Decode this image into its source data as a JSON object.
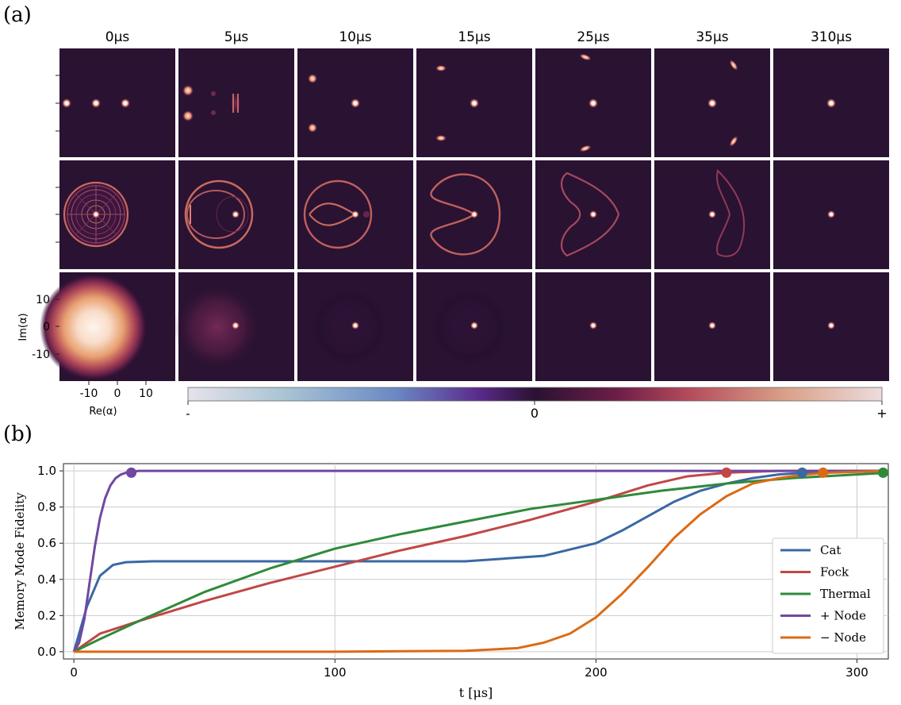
{
  "panel_a": {
    "label": "(a)",
    "time_labels": [
      "0μs",
      "5μs",
      "10μs",
      "15μs",
      "25μs",
      "35μs",
      "310μs"
    ],
    "x_axis": {
      "label": "Re(α)",
      "ticks": [
        "-10",
        "0",
        "10"
      ]
    },
    "y_axis": {
      "label": "Im(α)",
      "ticks": [
        "10",
        "0",
        "-10"
      ]
    },
    "colorbar": {
      "min_label": "-",
      "mid_label": "0",
      "max_label": "+"
    },
    "colors": {
      "background": "#2a1232",
      "bright": "#fff2ea"
    }
  },
  "chart_data": {
    "type": "line",
    "panel_label": "(b)",
    "xlabel": "t [μs]",
    "ylabel": "Memory Mode Fidelity",
    "xlim": [
      -4,
      312
    ],
    "ylim": [
      -0.04,
      1.04
    ],
    "xticks": [
      0,
      100,
      200,
      300
    ],
    "yticks": [
      0.0,
      0.2,
      0.4,
      0.6,
      0.8,
      1.0
    ],
    "xtick_labels": [
      "0",
      "100",
      "200",
      "300"
    ],
    "ytick_labels": [
      "0.0",
      "0.2",
      "0.4",
      "0.6",
      "0.8",
      "1.0"
    ],
    "grid": true,
    "legend_position": "bottom-right",
    "series": [
      {
        "name": "Cat",
        "color": "#3a68a4",
        "x": [
          0,
          5,
          10,
          15,
          20,
          30,
          50,
          100,
          150,
          180,
          200,
          210,
          220,
          230,
          240,
          250,
          260,
          270,
          280,
          300,
          312
        ],
        "y": [
          0,
          0.25,
          0.42,
          0.48,
          0.495,
          0.5,
          0.5,
          0.5,
          0.5,
          0.53,
          0.6,
          0.67,
          0.75,
          0.83,
          0.89,
          0.93,
          0.96,
          0.98,
          0.99,
          1.0,
          1.0
        ],
        "marker": [
          279,
          0.99
        ]
      },
      {
        "name": "Fock",
        "color": "#c14747",
        "x": [
          0,
          10,
          25,
          50,
          75,
          100,
          125,
          150,
          175,
          200,
          220,
          235,
          250,
          270,
          312
        ],
        "y": [
          0,
          0.1,
          0.17,
          0.28,
          0.38,
          0.47,
          0.56,
          0.64,
          0.73,
          0.83,
          0.92,
          0.97,
          0.99,
          1.0,
          1.0
        ],
        "marker": [
          250,
          0.99
        ]
      },
      {
        "name": "Thermal",
        "color": "#2f8a3a",
        "x": [
          0,
          10,
          25,
          50,
          75,
          100,
          125,
          150,
          175,
          200,
          225,
          250,
          275,
          300,
          312
        ],
        "y": [
          0,
          0.07,
          0.17,
          0.33,
          0.46,
          0.57,
          0.65,
          0.72,
          0.79,
          0.84,
          0.89,
          0.93,
          0.96,
          0.98,
          0.99
        ],
        "marker": [
          310,
          0.99
        ]
      },
      {
        "name": "+ Node",
        "color": "#7048a0",
        "x": [
          0,
          2,
          4,
          6,
          8,
          10,
          12,
          14,
          16,
          18,
          20,
          22,
          25,
          30,
          312
        ],
        "y": [
          0,
          0.05,
          0.18,
          0.38,
          0.58,
          0.74,
          0.85,
          0.92,
          0.96,
          0.98,
          0.99,
          0.995,
          1.0,
          1.0,
          1.0
        ],
        "marker": [
          22,
          0.99
        ]
      },
      {
        "name": "− Node",
        "color": "#dc6a14",
        "x": [
          0,
          50,
          100,
          150,
          170,
          180,
          190,
          200,
          210,
          220,
          230,
          240,
          250,
          260,
          270,
          280,
          290,
          312
        ],
        "y": [
          0,
          0,
          0,
          0.005,
          0.02,
          0.05,
          0.1,
          0.19,
          0.32,
          0.47,
          0.63,
          0.76,
          0.86,
          0.93,
          0.96,
          0.98,
          0.99,
          1.0
        ],
        "marker": [
          287,
          0.99
        ]
      }
    ]
  }
}
